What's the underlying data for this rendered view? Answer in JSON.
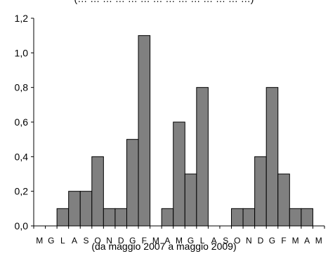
{
  "chart_data": {
    "type": "bar",
    "title": "(… … … … … … … … … … … … … …)",
    "xlabel": "(da maggio  2007 a maggio 2009)",
    "ylabel": "",
    "ylim": [
      0,
      1.2
    ],
    "yticks": [
      "0,0",
      "0,2",
      "0,4",
      "0,6",
      "0,8",
      "1,0",
      "1,2"
    ],
    "categories": [
      "M",
      "G",
      "L",
      "A",
      "S",
      "O",
      "N",
      "D",
      "G",
      "F",
      "M",
      "A",
      "M",
      "G",
      "L",
      "A",
      "S",
      "O",
      "N",
      "D",
      "G",
      "F",
      "M",
      "A",
      "M"
    ],
    "values": [
      0,
      0,
      0.1,
      0.2,
      0.2,
      0.4,
      0.1,
      0.1,
      0.5,
      1.1,
      0,
      0.1,
      0.6,
      0.3,
      0.8,
      0,
      0,
      0.1,
      0.1,
      0.4,
      0.8,
      0.3,
      0.1,
      0.1,
      0
    ],
    "grid": false,
    "bar_color": "#808080"
  }
}
